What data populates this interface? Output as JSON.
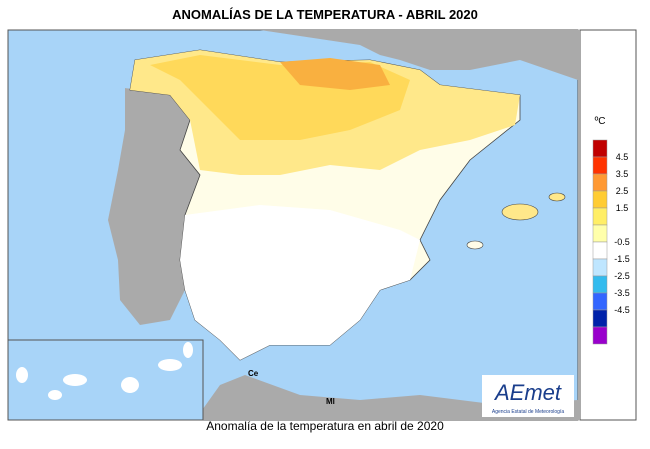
{
  "header": {
    "title": "ANOMALÍAS DE LA TEMPERATURA - ABRIL 2020"
  },
  "map": {
    "labels": [
      "Ce",
      "Ml"
    ],
    "logo": "AEmet",
    "logo_subtitle": "Agencia Estatal de Meteorología"
  },
  "legend": {
    "unit": "ºC",
    "labels": [
      "4.5",
      "3.5",
      "2.5",
      "1.5",
      "-0.5",
      "-1.5",
      "-2.5",
      "-3.5",
      "-4.5"
    ],
    "colors": [
      "#c00000",
      "#ff3300",
      "#ff9933",
      "#ffcc33",
      "#ffee66",
      "#ffffaa",
      "#ffffff",
      "#bfe6ff",
      "#33bbee",
      "#3366ff",
      "#0022aa",
      "#9900cc"
    ]
  },
  "caption": "Anomalía de la temperatura en abril de 2020"
}
